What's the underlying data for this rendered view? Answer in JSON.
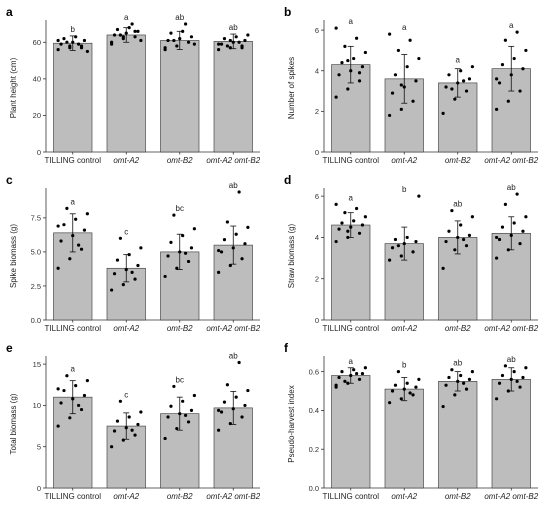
{
  "chart_data": [
    {
      "panel": "a",
      "type": "bar",
      "ylabel": "Plant height (cm)",
      "categories": [
        "TILLING control",
        "omt-A2",
        "omt-B2",
        "omt-A2 omt-B2"
      ],
      "values": [
        59.5,
        64.0,
        61.0,
        60.5
      ],
      "error": [
        4,
        4,
        5,
        4
      ],
      "letters": [
        "b",
        "a",
        "ab",
        "ab"
      ],
      "ylim": [
        0,
        70
      ],
      "yticks": [
        0,
        20,
        40,
        60
      ],
      "points": [
        [
          56,
          57,
          58,
          59,
          60,
          61,
          62,
          63,
          55,
          60,
          59,
          61,
          58,
          57
        ],
        [
          60,
          62,
          63,
          64,
          65,
          66,
          67,
          68,
          61,
          64,
          70,
          59,
          63,
          66
        ],
        [
          57,
          58,
          60,
          61,
          62,
          63,
          65,
          66,
          59,
          61,
          70,
          56
        ],
        [
          56,
          57,
          58,
          59,
          60,
          61,
          62,
          63,
          64,
          58,
          60,
          59,
          61,
          57
        ]
      ]
    },
    {
      "panel": "b",
      "type": "bar",
      "ylabel": "Number of spikes",
      "categories": [
        "TILLING control",
        "omt-A2",
        "omt-B2",
        "omt-A2 omt-B2"
      ],
      "values": [
        4.3,
        3.6,
        3.4,
        4.1
      ],
      "error": [
        0.9,
        1.2,
        0.7,
        1.1
      ],
      "letters": [
        "a",
        "a",
        "a",
        "a"
      ],
      "ylim": [
        0,
        6.3
      ],
      "yticks": [
        0,
        2,
        4,
        6
      ],
      "points": [
        [
          2.7,
          3.1,
          3.5,
          3.8,
          4.0,
          4.2,
          4.4,
          4.6,
          4.9,
          5.2,
          5.6,
          6.1,
          4.5,
          3.9
        ],
        [
          1.8,
          2.1,
          2.5,
          2.9,
          3.2,
          3.5,
          3.8,
          4.2,
          4.6,
          5.0,
          5.5,
          5.8,
          3.3
        ],
        [
          1.9,
          2.6,
          3.0,
          3.2,
          3.4,
          3.6,
          3.8,
          4.0,
          4.2,
          3.1,
          3.5
        ],
        [
          2.1,
          2.5,
          3.0,
          3.4,
          3.8,
          4.1,
          4.3,
          4.6,
          5.0,
          5.5,
          5.9,
          3.6
        ]
      ]
    },
    {
      "panel": "c",
      "type": "bar",
      "ylabel": "Spike biomass (g)",
      "categories": [
        "TILLING control",
        "omt-A2",
        "omt-B2",
        "omt-A2 omt-B2"
      ],
      "values": [
        6.4,
        3.8,
        5.0,
        5.5
      ],
      "error": [
        1.4,
        1.0,
        1.3,
        1.4
      ],
      "letters": [
        "a",
        "c",
        "bc",
        "ab"
      ],
      "ylim": [
        0,
        9.4
      ],
      "yticks": [
        0,
        2.5,
        5.0,
        7.5
      ],
      "points": [
        [
          3.8,
          4.5,
          5.2,
          5.8,
          6.2,
          6.6,
          7.0,
          7.4,
          7.8,
          8.2,
          5.5,
          6.9
        ],
        [
          2.2,
          2.6,
          3.0,
          3.4,
          3.7,
          4.0,
          4.4,
          4.8,
          5.3,
          6.0,
          3.5
        ],
        [
          3.2,
          3.8,
          4.3,
          4.7,
          5.0,
          5.3,
          5.7,
          6.2,
          6.7,
          7.7,
          4.9
        ],
        [
          3.5,
          4.0,
          4.5,
          5.0,
          5.3,
          5.6,
          5.9,
          6.3,
          6.8,
          7.2,
          9.4,
          5.1
        ]
      ]
    },
    {
      "panel": "d",
      "type": "bar",
      "ylabel": "Straw biomass (g)",
      "categories": [
        "TILLING control",
        "omt-A2",
        "omt-B2",
        "omt-A2 omt-B2"
      ],
      "values": [
        4.6,
        3.7,
        4.0,
        4.2
      ],
      "error": [
        0.6,
        0.8,
        0.8,
        0.8
      ],
      "letters": [
        "a",
        "b",
        "ab",
        "ab"
      ],
      "ylim": [
        0,
        6.2
      ],
      "yticks": [
        0,
        2,
        4,
        6
      ],
      "points": [
        [
          3.8,
          4.0,
          4.2,
          4.4,
          4.5,
          4.6,
          4.7,
          4.8,
          5.0,
          5.2,
          5.4,
          5.6,
          4.3
        ],
        [
          2.9,
          3.1,
          3.3,
          3.5,
          3.7,
          3.8,
          3.9,
          4.0,
          6.0,
          3.6
        ],
        [
          2.5,
          3.4,
          3.6,
          3.8,
          4.0,
          4.1,
          4.3,
          4.6,
          5.0,
          5.3,
          3.9
        ],
        [
          3.0,
          3.4,
          3.7,
          3.9,
          4.1,
          4.3,
          4.5,
          4.7,
          5.0,
          5.6,
          6.1,
          4.0
        ]
      ]
    },
    {
      "panel": "e",
      "type": "bar",
      "ylabel": "Total biomass (g)",
      "categories": [
        "TILLING control",
        "omt-A2",
        "omt-B2",
        "omt-A2 omt-B2"
      ],
      "values": [
        11.0,
        7.5,
        9.0,
        9.7
      ],
      "error": [
        2.0,
        1.6,
        2.0,
        2.0
      ],
      "letters": [
        "a",
        "c",
        "bc",
        "ab"
      ],
      "ylim": [
        0,
        15.5
      ],
      "yticks": [
        0,
        5,
        10,
        15
      ],
      "points": [
        [
          7.5,
          8.5,
          9.5,
          10.3,
          10.8,
          11.2,
          11.8,
          12.4,
          13.0,
          13.6,
          10.0,
          12.0
        ],
        [
          5.0,
          5.8,
          6.4,
          6.9,
          7.3,
          7.7,
          8.1,
          8.6,
          9.2,
          10.5,
          7.0
        ],
        [
          6.0,
          7.2,
          8.0,
          8.6,
          9.0,
          9.4,
          9.9,
          10.5,
          11.2,
          12.3,
          8.8
        ],
        [
          7.0,
          7.8,
          8.6,
          9.2,
          9.6,
          10.0,
          10.4,
          11.0,
          11.8,
          12.5,
          15.2,
          9.4
        ]
      ]
    },
    {
      "panel": "f",
      "type": "bar",
      "ylabel": "Pseudo-harvest index",
      "categories": [
        "TILLING control",
        "omt-A2",
        "omt-B2",
        "omt-A2 omt-B2"
      ],
      "values": [
        0.58,
        0.51,
        0.55,
        0.56
      ],
      "error": [
        0.04,
        0.06,
        0.05,
        0.06
      ],
      "letters": [
        "a",
        "b",
        "ab",
        "ab"
      ],
      "ylim": [
        0,
        0.66
      ],
      "yticks": [
        0,
        0.2,
        0.4,
        0.6
      ],
      "points": [
        [
          0.52,
          0.54,
          0.56,
          0.57,
          0.58,
          0.59,
          0.6,
          0.61,
          0.62,
          0.55,
          0.59,
          0.53
        ],
        [
          0.44,
          0.46,
          0.48,
          0.5,
          0.51,
          0.52,
          0.53,
          0.54,
          0.56,
          0.6,
          0.49
        ],
        [
          0.42,
          0.48,
          0.51,
          0.53,
          0.55,
          0.56,
          0.57,
          0.58,
          0.6,
          0.61,
          0.54
        ],
        [
          0.46,
          0.5,
          0.52,
          0.54,
          0.56,
          0.57,
          0.58,
          0.6,
          0.62,
          0.63,
          0.55
        ]
      ]
    }
  ]
}
